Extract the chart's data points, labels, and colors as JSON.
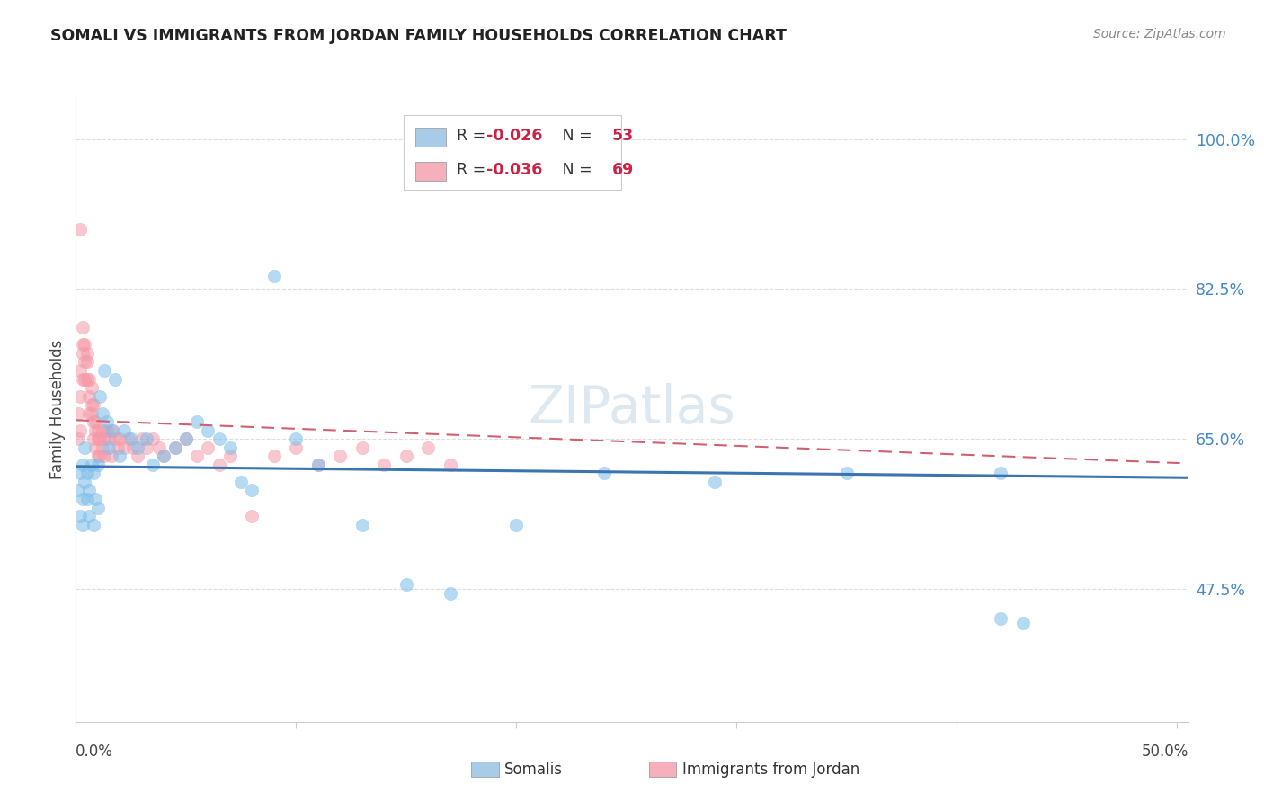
{
  "title": "SOMALI VS IMMIGRANTS FROM JORDAN FAMILY HOUSEHOLDS CORRELATION CHART",
  "source": "Source: ZipAtlas.com",
  "ylabel": "Family Households",
  "ytick_vals": [
    0.475,
    0.65,
    0.825,
    1.0
  ],
  "ytick_labels": [
    "47.5%",
    "65.0%",
    "82.5%",
    "100.0%"
  ],
  "xlim": [
    0.0,
    0.505
  ],
  "ylim": [
    0.32,
    1.05
  ],
  "somali_color": "#7bbde8",
  "somali_edge": "#5a9fd4",
  "jordan_color": "#f599a8",
  "jordan_edge": "#e07080",
  "somali_line_color": "#3a75b0",
  "jordan_line_color": "#d06070",
  "grid_color": "#dddddd",
  "spine_color": "#cccccc",
  "background_color": "#ffffff",
  "watermark": "ZIPatlas",
  "watermark_color": "#dde8f0",
  "legend_blue_patch": "#a8cce8",
  "legend_pink_patch": "#f5b0bc",
  "legend_r_color": "#cc2244",
  "legend_n_color": "#cc2244",
  "somali_line_intercept": 0.618,
  "somali_line_slope": -0.026,
  "jordan_line_intercept": 0.672,
  "jordan_line_slope": -0.1,
  "somali_pts_x": [
    0.001,
    0.002,
    0.002,
    0.003,
    0.003,
    0.003,
    0.004,
    0.004,
    0.005,
    0.005,
    0.006,
    0.006,
    0.007,
    0.008,
    0.008,
    0.009,
    0.01,
    0.01,
    0.011,
    0.012,
    0.013,
    0.014,
    0.015,
    0.016,
    0.018,
    0.02,
    0.022,
    0.025,
    0.028,
    0.032,
    0.035,
    0.04,
    0.045,
    0.05,
    0.055,
    0.06,
    0.065,
    0.07,
    0.075,
    0.08,
    0.09,
    0.1,
    0.11,
    0.13,
    0.15,
    0.17,
    0.2,
    0.24,
    0.29,
    0.35,
    0.42,
    0.42,
    0.43
  ],
  "somali_pts_y": [
    0.59,
    0.56,
    0.61,
    0.58,
    0.62,
    0.55,
    0.6,
    0.64,
    0.58,
    0.61,
    0.56,
    0.59,
    0.62,
    0.55,
    0.61,
    0.58,
    0.57,
    0.62,
    0.7,
    0.68,
    0.73,
    0.67,
    0.64,
    0.66,
    0.72,
    0.63,
    0.66,
    0.65,
    0.64,
    0.65,
    0.62,
    0.63,
    0.64,
    0.65,
    0.67,
    0.66,
    0.65,
    0.64,
    0.6,
    0.59,
    0.84,
    0.65,
    0.62,
    0.55,
    0.48,
    0.47,
    0.55,
    0.61,
    0.6,
    0.61,
    0.61,
    0.44,
    0.435
  ],
  "jordan_pts_x": [
    0.001,
    0.001,
    0.002,
    0.002,
    0.002,
    0.003,
    0.003,
    0.003,
    0.003,
    0.004,
    0.004,
    0.004,
    0.005,
    0.005,
    0.005,
    0.006,
    0.006,
    0.006,
    0.007,
    0.007,
    0.007,
    0.008,
    0.008,
    0.008,
    0.009,
    0.009,
    0.009,
    0.01,
    0.01,
    0.01,
    0.011,
    0.011,
    0.012,
    0.012,
    0.013,
    0.013,
    0.014,
    0.015,
    0.016,
    0.017,
    0.018,
    0.019,
    0.02,
    0.022,
    0.024,
    0.026,
    0.028,
    0.03,
    0.032,
    0.035,
    0.038,
    0.04,
    0.045,
    0.05,
    0.055,
    0.06,
    0.065,
    0.07,
    0.08,
    0.09,
    0.1,
    0.11,
    0.12,
    0.13,
    0.14,
    0.15,
    0.16,
    0.17,
    0.002
  ],
  "jordan_pts_y": [
    0.65,
    0.68,
    0.66,
    0.7,
    0.73,
    0.72,
    0.75,
    0.76,
    0.78,
    0.74,
    0.72,
    0.76,
    0.74,
    0.75,
    0.72,
    0.7,
    0.72,
    0.68,
    0.69,
    0.71,
    0.68,
    0.67,
    0.69,
    0.65,
    0.67,
    0.64,
    0.66,
    0.65,
    0.63,
    0.66,
    0.65,
    0.63,
    0.64,
    0.66,
    0.65,
    0.63,
    0.66,
    0.65,
    0.63,
    0.66,
    0.65,
    0.64,
    0.65,
    0.64,
    0.65,
    0.64,
    0.63,
    0.65,
    0.64,
    0.65,
    0.64,
    0.63,
    0.64,
    0.65,
    0.63,
    0.64,
    0.62,
    0.63,
    0.56,
    0.63,
    0.64,
    0.62,
    0.63,
    0.64,
    0.62,
    0.63,
    0.64,
    0.62,
    0.895
  ]
}
